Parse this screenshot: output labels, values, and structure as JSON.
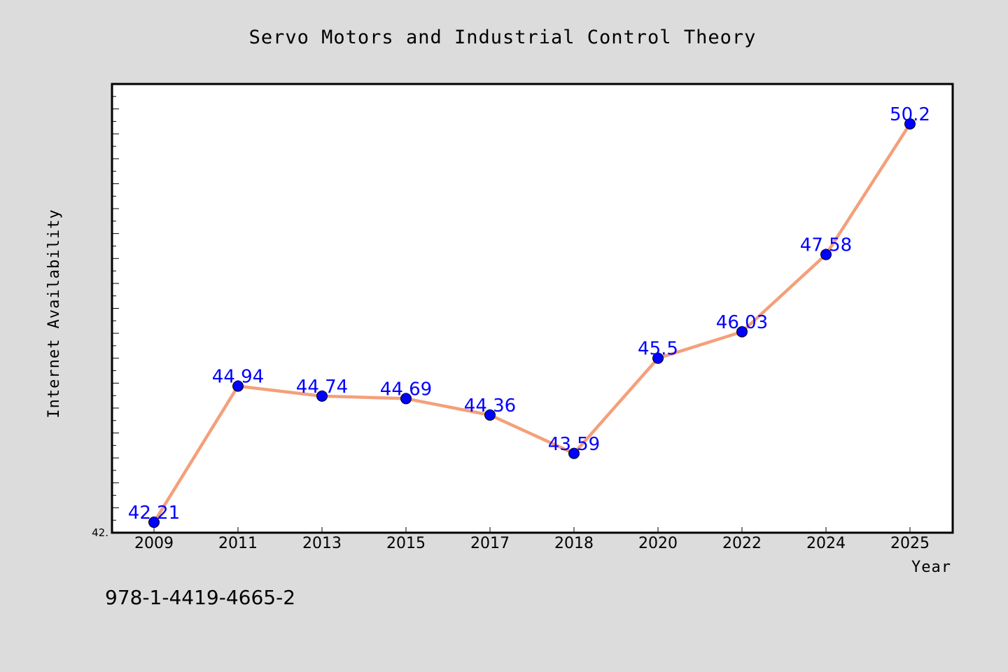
{
  "chart_data": {
    "type": "line",
    "title": "Servo Motors and Industrial Control Theory",
    "xlabel": "Year",
    "ylabel": "Internet Availability",
    "categories": [
      "2009",
      "2011",
      "2013",
      "2015",
      "2017",
      "2018",
      "2020",
      "2022",
      "2024",
      "2025"
    ],
    "series": [
      {
        "values": [
          42.21,
          44.94,
          44.74,
          44.69,
          44.36,
          43.59,
          45.5,
          46.03,
          47.58,
          50.2
        ],
        "labels": [
          "42.21",
          "44.94",
          "44.74",
          "44.69",
          "44.36",
          "43.59",
          "45.5",
          "46.03",
          "47.58",
          "50.2"
        ]
      }
    ],
    "ylim": [
      42.0,
      51.0
    ],
    "ytick_label": "42.",
    "grid": false,
    "line_color": "#f4a07a",
    "marker_color": "#0000ff",
    "label_color": "#0000ff"
  },
  "footer": {
    "isbn": "978-1-4419-4665-2"
  },
  "colors": {
    "background": "#dcdcdc",
    "plot_background": "#ffffff"
  }
}
